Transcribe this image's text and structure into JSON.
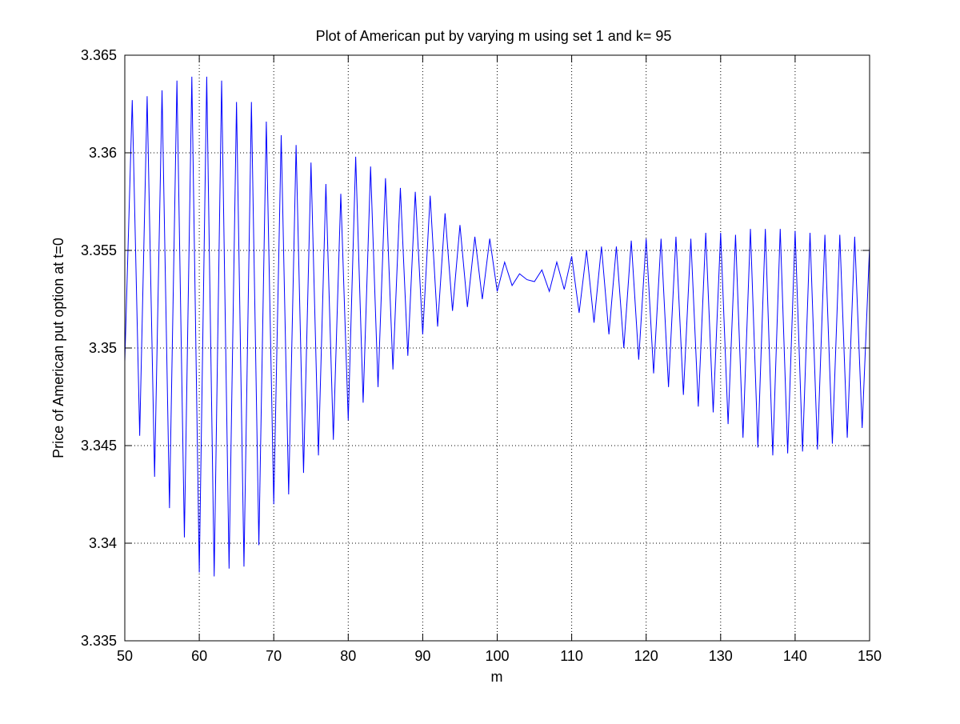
{
  "chart_data": {
    "type": "line",
    "title": "Plot of American put by varying m using set 1 and k= 95",
    "xlabel": "m",
    "ylabel": "Price of American put option at t=0",
    "xlim": [
      50,
      150
    ],
    "ylim": [
      3.335,
      3.365
    ],
    "xticks": [
      50,
      60,
      70,
      80,
      90,
      100,
      110,
      120,
      130,
      140,
      150
    ],
    "yticks": [
      3.335,
      3.34,
      3.345,
      3.35,
      3.355,
      3.36,
      3.365
    ],
    "xtick_labels": [
      "50",
      "60",
      "70",
      "80",
      "90",
      "100",
      "110",
      "120",
      "130",
      "140",
      "150"
    ],
    "ytick_labels": [
      "3.335",
      "3.34",
      "3.345",
      "3.35",
      "3.355",
      "3.36",
      "3.365"
    ],
    "grid": true,
    "line_color": "#0000ff",
    "series": [
      {
        "x": [
          50,
          51,
          52,
          53,
          54,
          55,
          56,
          57,
          58,
          59,
          60,
          61,
          62,
          63,
          64,
          65,
          66,
          67,
          68,
          69,
          70,
          71,
          72,
          73,
          74,
          75,
          76,
          77,
          78,
          79,
          80,
          81,
          82,
          83,
          84,
          85,
          86,
          87,
          88,
          89,
          90,
          91,
          92,
          93,
          94,
          95,
          96,
          97,
          98,
          99,
          100,
          101,
          102,
          103,
          104,
          105,
          106,
          107,
          108,
          109,
          110,
          111,
          112,
          113,
          114,
          115,
          116,
          117,
          118,
          119,
          120,
          121,
          122,
          123,
          124,
          125,
          126,
          127,
          128,
          129,
          130,
          131,
          132,
          133,
          134,
          135,
          136,
          137,
          138,
          139,
          140,
          141,
          142,
          143,
          144,
          145,
          146,
          147,
          148,
          149,
          150
        ],
        "values": [
          3.3493,
          3.3627,
          3.3455,
          3.3629,
          3.3434,
          3.3632,
          3.3418,
          3.3637,
          3.3403,
          3.3639,
          3.3385,
          3.3639,
          3.3383,
          3.3637,
          3.3387,
          3.3626,
          3.3388,
          3.3626,
          3.3399,
          3.3616,
          3.342,
          3.3609,
          3.3425,
          3.3604,
          3.3436,
          3.3595,
          3.3445,
          3.3584,
          3.3453,
          3.3579,
          3.3463,
          3.3598,
          3.3472,
          3.3593,
          3.348,
          3.3587,
          3.3489,
          3.3582,
          3.3496,
          3.358,
          3.3507,
          3.3578,
          3.3511,
          3.3569,
          3.3519,
          3.3563,
          3.3521,
          3.3557,
          3.3525,
          3.3556,
          3.3529,
          3.3544,
          3.3532,
          3.3538,
          3.3535,
          3.3534,
          3.354,
          3.3529,
          3.3544,
          3.353,
          3.3547,
          3.3518,
          3.355,
          3.3513,
          3.3552,
          3.3507,
          3.3552,
          3.35,
          3.3555,
          3.3494,
          3.3556,
          3.3487,
          3.3556,
          3.348,
          3.3557,
          3.3476,
          3.3556,
          3.347,
          3.3559,
          3.3467,
          3.3559,
          3.3461,
          3.3558,
          3.3454,
          3.3561,
          3.3449,
          3.3561,
          3.3445,
          3.3561,
          3.3446,
          3.356,
          3.3447,
          3.3559,
          3.3448,
          3.3558,
          3.3451,
          3.3558,
          3.3454,
          3.3557,
          3.3459,
          3.3552
        ]
      }
    ]
  }
}
